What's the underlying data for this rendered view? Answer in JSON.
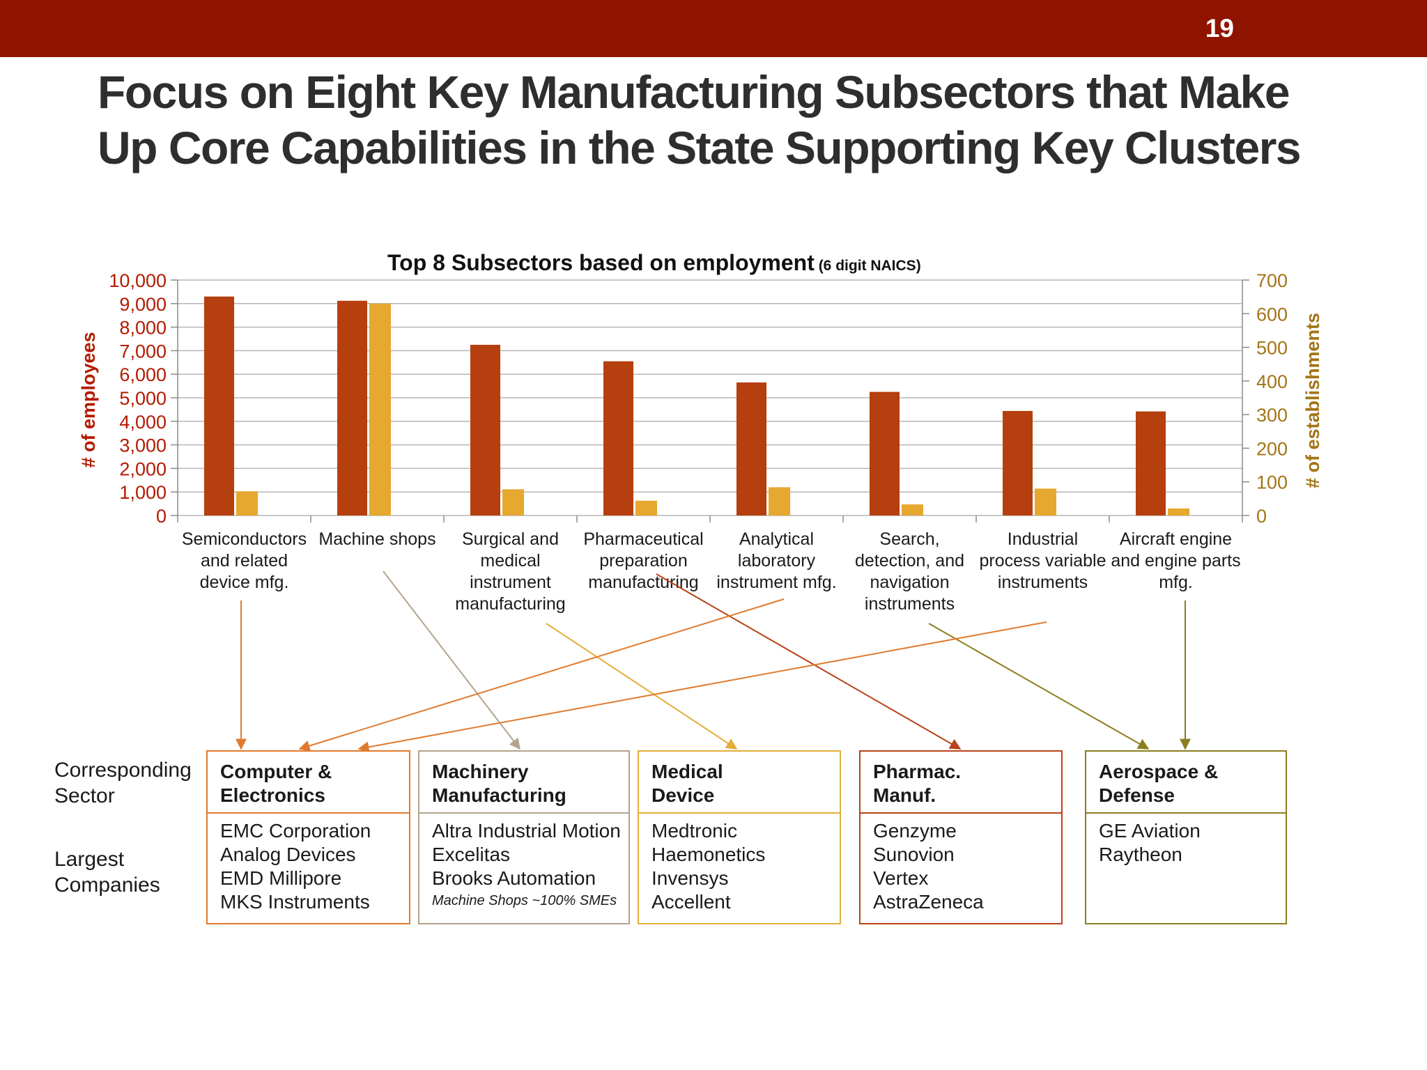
{
  "slide": {
    "number": "19",
    "title_lines": [
      "Focus on Eight Key Manufacturing Subsectors that Make",
      "Up Core Capabilities in the State Supporting Key Clusters"
    ]
  },
  "colors": {
    "header_bar": "#8f1400",
    "employees": "#b53f0e",
    "establishments": "#e6a82f",
    "left_axis_text": "#b31b00",
    "right_axis_text": "#a37516",
    "computer_electronics": "#e07b2e",
    "machinery": "#b3a48c",
    "medical_device": "#e3ae3a",
    "pharma": "#b8431a",
    "aerospace": "#8c7d1f"
  },
  "chart_data": {
    "type": "bar",
    "title": "Top 8 Subsectors based on employment",
    "title_note": "(6 digit NAICS)",
    "categories": [
      [
        "Semiconductors",
        "and related",
        "device mfg."
      ],
      [
        "Machine shops"
      ],
      [
        "Surgical and",
        "medical",
        "instrument",
        "manufacturing"
      ],
      [
        "Pharmaceutical",
        "preparation",
        "manufacturing"
      ],
      [
        "Analytical",
        "laboratory",
        "instrument mfg."
      ],
      [
        "Search,",
        "detection, and",
        "navigation",
        "instruments"
      ],
      [
        "Industrial",
        "process variable",
        "instruments"
      ],
      [
        "Aircraft engine",
        "and engine parts",
        "mfg."
      ]
    ],
    "series": [
      {
        "axis": "left",
        "color": "#b53f0e",
        "values": [
          9300,
          9120,
          7250,
          6550,
          5650,
          5250,
          4440,
          4420
        ]
      },
      {
        "axis": "right",
        "color": "#e6a82f",
        "values": [
          72,
          630,
          78,
          44,
          84,
          33,
          80,
          21
        ]
      }
    ],
    "y_left": {
      "label": "# of employees",
      "min": 0,
      "max": 10000,
      "step": 1000,
      "tick_labels": [
        "0",
        "1,000",
        "2,000",
        "3,000",
        "4,000",
        "5,000",
        "6,000",
        "7,000",
        "8,000",
        "9,000",
        "10,000"
      ]
    },
    "y_right": {
      "label": "# of establishments",
      "min": 0,
      "max": 700,
      "step": 100,
      "tick_labels": [
        "0",
        "100",
        "200",
        "300",
        "400",
        "500",
        "600",
        "700"
      ]
    },
    "grid": true,
    "legend": "none"
  },
  "mapping": {
    "row_labels": {
      "sector": [
        "Corresponding",
        "Sector"
      ],
      "companies": [
        "Largest",
        "Companies"
      ]
    },
    "sectors": [
      {
        "key": "computer_electronics",
        "name_lines": [
          "Computer &",
          "Electronics"
        ],
        "color": "#e07b2e",
        "companies": [
          "EMC Corporation",
          "Analog Devices",
          "EMD Millipore",
          "MKS Instruments"
        ],
        "note": ""
      },
      {
        "key": "machinery",
        "name_lines": [
          "Machinery",
          "Manufacturing"
        ],
        "color": "#b3a48c",
        "companies": [
          "Altra Industrial Motion",
          "Excelitas",
          "Brooks Automation"
        ],
        "note": "Machine Shops ~100% SMEs"
      },
      {
        "key": "medical_device",
        "name_lines": [
          "Medical",
          "Device"
        ],
        "color": "#e3ae3a",
        "companies": [
          "Medtronic",
          "Haemonetics",
          "Invensys",
          "Accellent"
        ],
        "note": ""
      },
      {
        "key": "pharma",
        "name_lines": [
          "Pharmac.",
          "Manuf."
        ],
        "color": "#b8431a",
        "companies": [
          "Genzyme",
          "Sunovion",
          "Vertex",
          "AstraZeneca"
        ],
        "note": ""
      },
      {
        "key": "aerospace",
        "name_lines": [
          "Aerospace &",
          "Defense"
        ],
        "color": "#8c7d1f",
        "companies": [
          "GE Aviation",
          "Raytheon"
        ],
        "note": ""
      }
    ],
    "arrows": [
      {
        "from_category": 0,
        "to_sector": 0,
        "color": "#e07b2e"
      },
      {
        "from_category": 1,
        "to_sector": 1,
        "color": "#b3a48c"
      },
      {
        "from_category": 2,
        "to_sector": 2,
        "color": "#e3ae3a"
      },
      {
        "from_category": 3,
        "to_sector": 3,
        "color": "#b8431a"
      },
      {
        "from_category": 4,
        "to_sector": 0,
        "color": "#e07b2e"
      },
      {
        "from_category": 5,
        "to_sector": 4,
        "color": "#8c7d1f"
      },
      {
        "from_category": 6,
        "to_sector": 0,
        "color": "#e07b2e"
      },
      {
        "from_category": 7,
        "to_sector": 4,
        "color": "#8c7d1f"
      }
    ]
  }
}
